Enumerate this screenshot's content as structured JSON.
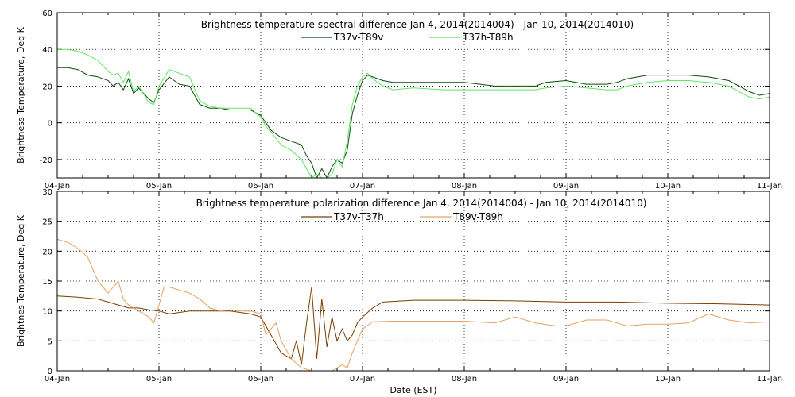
{
  "xlabel": "Date (EST)",
  "colors": {
    "t37v_t89v": "#0b4d0b",
    "t37h_t89h": "#5fe85f",
    "t37v_t37h": "#7a3d00",
    "t89v_t89h": "#e8a060"
  },
  "chart_data": [
    {
      "type": "line",
      "title": "Brightness temperature spectral difference    Jan  4, 2014(2014004) - Jan 10, 2014(2014010)",
      "ylabel": "Brightness Temperature, Deg K",
      "xlabel": "",
      "xlim": [
        0,
        7
      ],
      "x_tick_labels": [
        "04-Jan",
        "05-Jan",
        "06-Jan",
        "07-Jan",
        "08-Jan",
        "09-Jan",
        "10-Jan",
        "11-Jan"
      ],
      "ylim": [
        -30,
        60
      ],
      "y_ticks": [
        -20,
        0,
        20,
        40,
        60
      ],
      "grid": true,
      "legend": "top-center",
      "series": [
        {
          "name": "T37v-T89v",
          "color_key": "t37v_t89v",
          "x": [
            0,
            0.1,
            0.2,
            0.3,
            0.4,
            0.5,
            0.55,
            0.6,
            0.65,
            0.7,
            0.75,
            0.8,
            0.9,
            0.95,
            1.0,
            1.1,
            1.2,
            1.3,
            1.4,
            1.5,
            1.6,
            1.7,
            1.8,
            1.9,
            2.0,
            2.05,
            2.1,
            2.2,
            2.3,
            2.4,
            2.45,
            2.5,
            2.55,
            2.6,
            2.65,
            2.7,
            2.75,
            2.8,
            2.85,
            2.9,
            2.95,
            3.0,
            3.05,
            3.1,
            3.2,
            3.3,
            3.5,
            3.8,
            4.0,
            4.3,
            4.5,
            4.7,
            4.8,
            5.0,
            5.2,
            5.4,
            5.5,
            5.6,
            5.8,
            6.0,
            6.2,
            6.4,
            6.6,
            6.7,
            6.8,
            6.9,
            7.0
          ],
          "y": [
            30,
            30,
            29,
            26,
            25,
            23,
            20,
            22,
            18,
            24,
            16,
            19,
            13,
            11,
            18,
            25,
            21,
            20,
            10,
            8,
            8,
            7,
            7,
            7,
            4,
            0,
            -4,
            -8,
            -10,
            -12,
            -18,
            -22,
            -30,
            -25,
            -30,
            -24,
            -20,
            -22,
            -15,
            5,
            15,
            23,
            26,
            25,
            23,
            22,
            22,
            22,
            22,
            20,
            20,
            20,
            22,
            23,
            21,
            21,
            22,
            24,
            26,
            26,
            26,
            25,
            23,
            20,
            17,
            15,
            16
          ]
        },
        {
          "name": "T37h-T89h",
          "color_key": "t37h_t89h",
          "x": [
            0,
            0.1,
            0.2,
            0.3,
            0.4,
            0.5,
            0.55,
            0.6,
            0.65,
            0.7,
            0.75,
            0.8,
            0.9,
            0.95,
            1.0,
            1.1,
            1.2,
            1.3,
            1.4,
            1.5,
            1.6,
            1.7,
            1.8,
            1.9,
            2.0,
            2.05,
            2.1,
            2.2,
            2.3,
            2.4,
            2.45,
            2.5,
            2.55,
            2.6,
            2.65,
            2.7,
            2.75,
            2.8,
            2.85,
            2.9,
            2.95,
            3.0,
            3.05,
            3.1,
            3.2,
            3.3,
            3.5,
            3.8,
            4.0,
            4.3,
            4.5,
            4.7,
            4.8,
            5.0,
            5.2,
            5.4,
            5.5,
            5.6,
            5.8,
            6.0,
            6.2,
            6.4,
            6.6,
            6.7,
            6.8,
            6.9,
            7.0
          ],
          "y": [
            40,
            40,
            39,
            37,
            34,
            28,
            26,
            27,
            22,
            28,
            17,
            20,
            11,
            10,
            20,
            29,
            27,
            25,
            12,
            9,
            8,
            8,
            8,
            8,
            3,
            -2,
            -5,
            -12,
            -15,
            -20,
            -25,
            -30,
            -28,
            -30,
            -30,
            -28,
            -20,
            -24,
            -10,
            10,
            20,
            25,
            27,
            24,
            20,
            18,
            19,
            18,
            18,
            18,
            18,
            18,
            19,
            20,
            19,
            18,
            18,
            20,
            22,
            23,
            23,
            22,
            20,
            17,
            14,
            13,
            14
          ]
        }
      ]
    },
    {
      "type": "line",
      "title": "Brightness temperature polarization difference    Jan  4, 2014(2014004) - Jan 10, 2014(2014010)",
      "ylabel": "Brightnes Temperature, Deg K",
      "xlabel": "Date (EST)",
      "xlim": [
        0,
        7
      ],
      "x_tick_labels": [
        "04-Jan",
        "05-Jan",
        "06-Jan",
        "07-Jan",
        "08-Jan",
        "09-Jan",
        "10-Jan",
        "11-Jan"
      ],
      "ylim": [
        0,
        30
      ],
      "y_ticks": [
        0,
        5,
        10,
        15,
        20,
        25,
        30
      ],
      "grid": true,
      "legend": "top-center",
      "series": [
        {
          "name": "T37v-T37h",
          "color_key": "t37v_t37h",
          "x": [
            0,
            0.2,
            0.4,
            0.5,
            0.6,
            0.7,
            0.8,
            0.9,
            1.0,
            1.1,
            1.3,
            1.5,
            1.7,
            1.9,
            2.0,
            2.1,
            2.2,
            2.3,
            2.35,
            2.4,
            2.45,
            2.5,
            2.55,
            2.6,
            2.65,
            2.7,
            2.75,
            2.8,
            2.85,
            2.9,
            2.95,
            3.0,
            3.1,
            3.2,
            3.5,
            4.0,
            4.5,
            5.0,
            5.5,
            6.0,
            6.5,
            7.0
          ],
          "y": [
            12.5,
            12.3,
            12,
            11.5,
            11,
            10.5,
            10.5,
            10.2,
            10,
            9.5,
            10,
            10,
            10,
            9.5,
            9,
            6,
            3,
            2,
            5,
            1,
            8,
            14,
            2,
            12,
            4,
            9,
            5,
            7,
            5,
            6,
            8,
            9,
            10.5,
            11.5,
            11.8,
            11.8,
            11.7,
            11.5,
            11.5,
            11.3,
            11.2,
            11
          ]
        },
        {
          "name": "T89v-T89h",
          "color_key": "t89v_t89h",
          "x": [
            0,
            0.1,
            0.2,
            0.3,
            0.35,
            0.4,
            0.45,
            0.5,
            0.6,
            0.65,
            0.7,
            0.8,
            0.9,
            0.95,
            1.0,
            1.05,
            1.1,
            1.2,
            1.3,
            1.4,
            1.5,
            1.6,
            1.7,
            1.8,
            1.9,
            2.0,
            2.05,
            2.1,
            2.15,
            2.2,
            2.3,
            2.4,
            2.5,
            2.6,
            2.7,
            2.8,
            2.85,
            2.9,
            2.95,
            3.0,
            3.1,
            3.3,
            3.6,
            4.0,
            4.3,
            4.5,
            4.7,
            4.9,
            5.0,
            5.2,
            5.4,
            5.5,
            5.6,
            5.8,
            6.0,
            6.2,
            6.4,
            6.6,
            6.8,
            7.0
          ],
          "y": [
            22,
            21.5,
            20.5,
            19,
            17,
            15,
            14,
            13,
            15,
            12,
            11,
            10,
            9,
            8,
            11,
            14,
            14,
            13.5,
            13,
            12,
            10.5,
            10,
            10.2,
            10,
            10,
            9.5,
            6,
            7,
            8,
            5,
            2,
            0.5,
            0,
            0,
            0,
            1,
            0.5,
            3,
            5,
            7,
            8.2,
            8.3,
            8.3,
            8.3,
            8,
            9,
            8,
            7.5,
            7.5,
            8.5,
            8.5,
            8,
            7.5,
            7.8,
            7.8,
            8,
            9.5,
            8.5,
            8,
            8.2
          ]
        }
      ]
    }
  ]
}
